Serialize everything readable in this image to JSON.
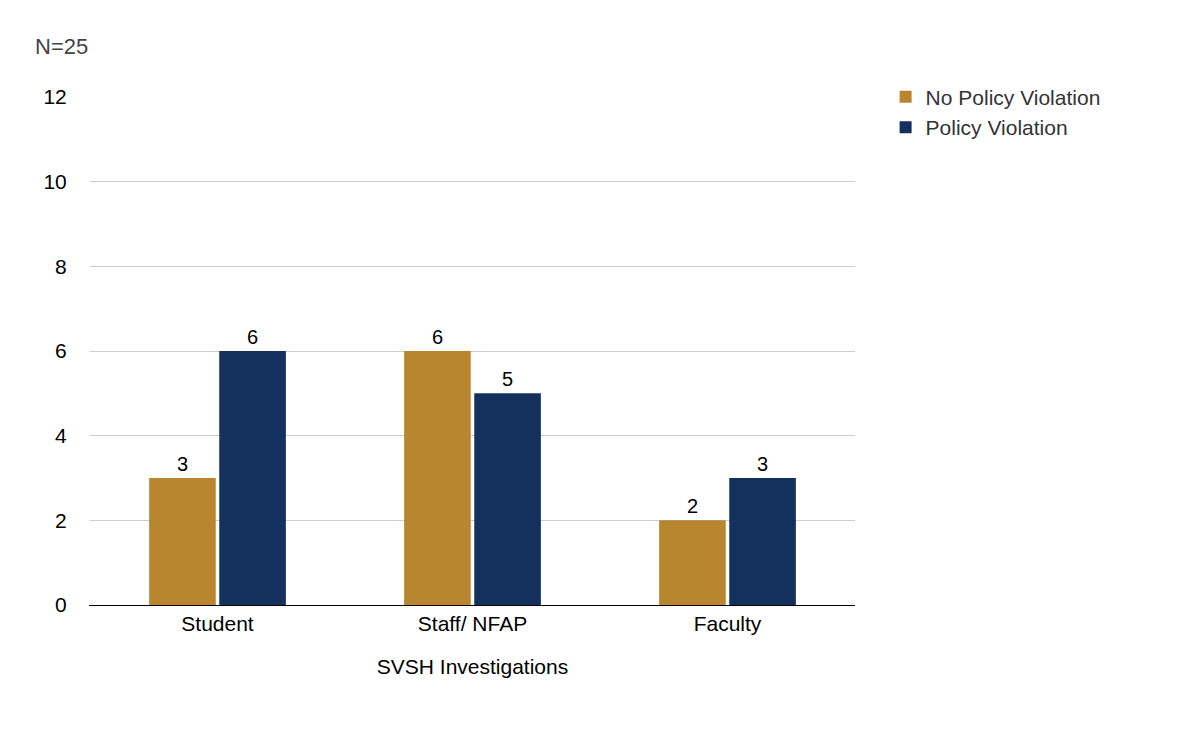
{
  "chart_data": {
    "type": "bar",
    "annotations": [
      "N=25"
    ],
    "x_label": "SVSH Investigations",
    "categories": [
      "Student",
      "Staff/ NFAP",
      "Faculty"
    ],
    "series": [
      {
        "name": "No Policy Violation",
        "color": "#b8862f",
        "values": [
          3,
          6,
          2
        ]
      },
      {
        "name": "Policy Violation",
        "color": "#13315c",
        "values": [
          6,
          5,
          3
        ]
      }
    ],
    "ylim": [
      0,
      12
    ],
    "yticks": [
      0,
      2,
      4,
      6,
      8,
      10,
      12
    ],
    "grid": true,
    "legend": "top right",
    "data_labels": true
  }
}
